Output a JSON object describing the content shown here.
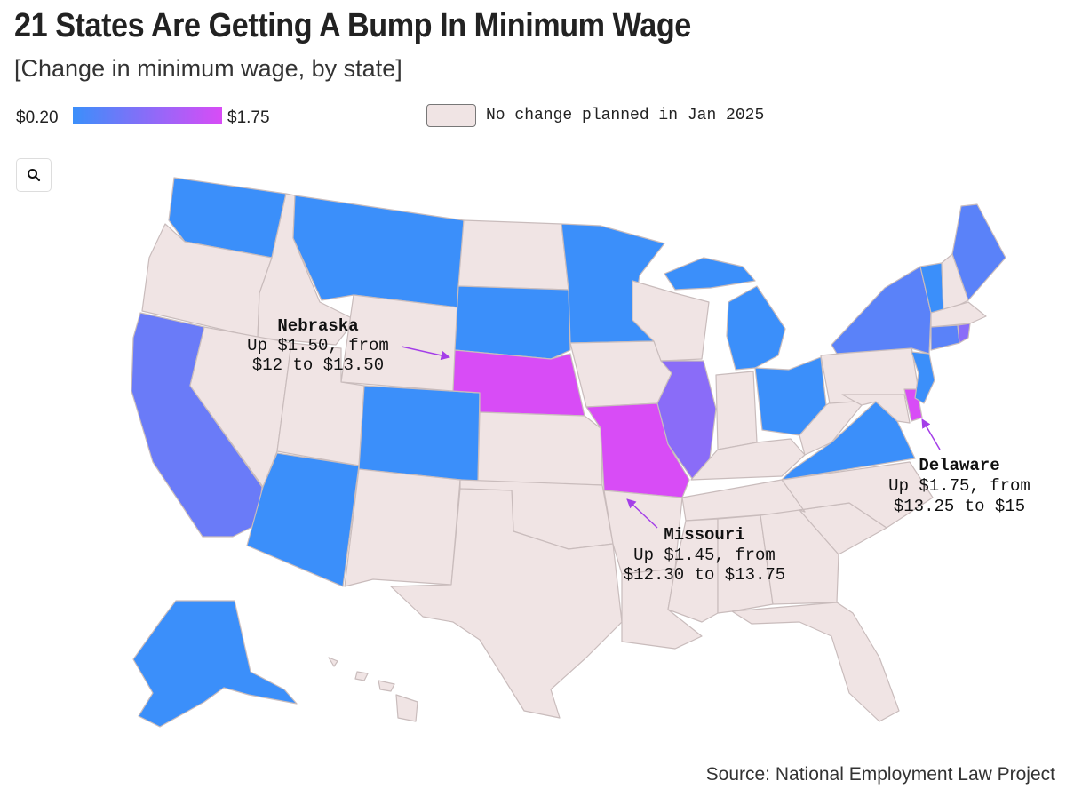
{
  "header": {
    "title": "21 States Are Getting A Bump In Minimum Wage",
    "subtitle": "[Change in minimum wage, by state]"
  },
  "legend": {
    "min_label": "$0.20",
    "max_label": "$1.75",
    "no_change_label": "No change planned in Jan 2025",
    "colors": {
      "low": "#3b8ffa",
      "mid": "#8a6cf8",
      "high": "#d84cf6",
      "no_change": "#f0e4e4"
    }
  },
  "controls": {
    "zoom_icon": "search-icon"
  },
  "map": {
    "highlighted_states": [
      "Washington",
      "Montana",
      "South Dakota",
      "Minnesota",
      "Michigan",
      "Ohio",
      "Virginia",
      "New Jersey",
      "New York",
      "Vermont",
      "Maine",
      "Connecticut",
      "Rhode Island",
      "California",
      "Arizona",
      "Colorado",
      "Illinois",
      "Alaska",
      "Nebraska",
      "Missouri",
      "Delaware"
    ],
    "annotations": [
      {
        "state": "Nebraska",
        "title": "Nebraska",
        "line1": "Up $1.50, from",
        "line2": "$12 to $13.50"
      },
      {
        "state": "Missouri",
        "title": "Missouri",
        "line1": "Up $1.45, from",
        "line2": "$12.30 to $13.75"
      },
      {
        "state": "Delaware",
        "title": "Delaware",
        "line1": "Up $1.75, from",
        "line2": "$13.25 to $15"
      }
    ]
  },
  "footer": {
    "source": "Source: National Employment Law Project"
  }
}
